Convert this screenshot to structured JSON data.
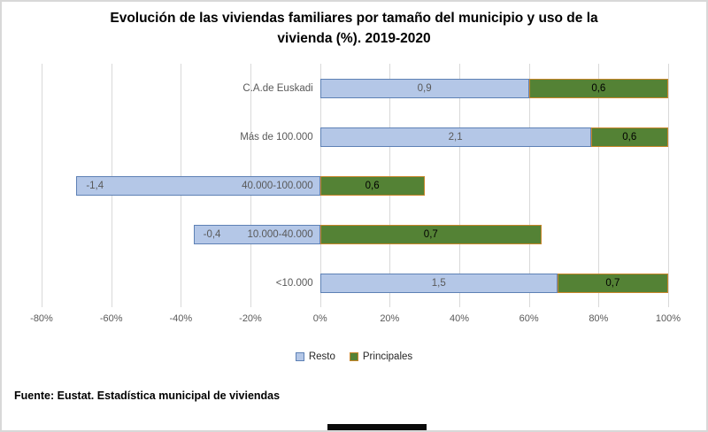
{
  "header": {
    "title_line1": "Evolución de las viviendas familiares por tamaño del municipio y uso de la",
    "title_line2": "vivienda (%). 2019-2020"
  },
  "footer": {
    "source": "Fuente: Eustat. Estadística municipal de viviendas"
  },
  "chart_data": {
    "type": "bar",
    "orientation": "horizontal",
    "mode": "100%-stacked",
    "title": "Evolución de las viviendas familiares por tamaño del municipio y uso de la vivienda (%). 2019-2020",
    "categories": [
      "C.A.de Euskadi",
      "Más de 100.000",
      "40.000-100.000",
      "10.000-40.000",
      "<10.000"
    ],
    "series": [
      {
        "name": "Resto",
        "values": [
          0.9,
          2.1,
          -1.4,
          -0.4,
          1.5
        ],
        "labels": [
          "0,9",
          "2,1",
          "-1,4",
          "-0,4",
          "1,5"
        ],
        "fill": "#b4c7e7",
        "border": "#5e81b5",
        "label_color": "#595959"
      },
      {
        "name": "Principales",
        "values": [
          0.6,
          0.6,
          0.6,
          0.7,
          0.7
        ],
        "labels": [
          "0,6",
          "0,6",
          "0,6",
          "0,7",
          "0,7"
        ],
        "fill": "#548235",
        "border": "#c8862b",
        "label_color": "#000000"
      }
    ],
    "x_axis": {
      "min": -80,
      "max": 100,
      "tick_step": 20,
      "ticks": [
        {
          "value": -80,
          "label": "-80%"
        },
        {
          "value": -60,
          "label": "-60%"
        },
        {
          "value": -40,
          "label": "-40%"
        },
        {
          "value": -20,
          "label": "-20%"
        },
        {
          "value": 0,
          "label": "0%"
        },
        {
          "value": 20,
          "label": "20%"
        },
        {
          "value": 40,
          "label": "40%"
        },
        {
          "value": 60,
          "label": "60%"
        },
        {
          "value": 80,
          "label": "80%"
        },
        {
          "value": 100,
          "label": "100%"
        }
      ]
    },
    "gridlines": true,
    "legend_position": "bottom",
    "legend": [
      "Resto",
      "Principales"
    ]
  }
}
